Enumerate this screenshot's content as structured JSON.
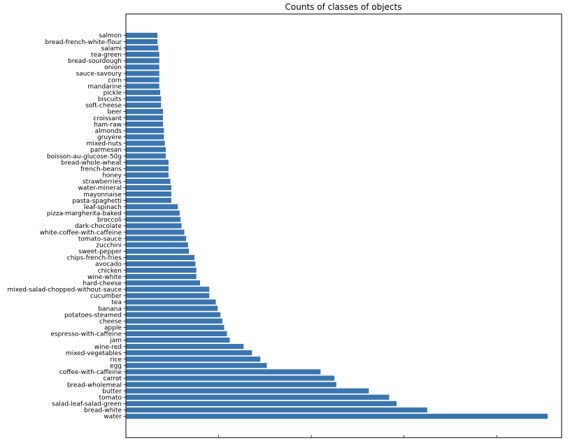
{
  "chart_data": {
    "type": "bar",
    "orientation": "horizontal",
    "title": "Counts of classes of objects",
    "xlabel": "",
    "ylabel": "",
    "xlim": [
      0,
      4700
    ],
    "xticks": [
      0,
      1000,
      2000,
      3000,
      4000
    ],
    "x_tick_labels_visible": false,
    "grid": false,
    "legend": "none",
    "bar_color": "#3a75b0",
    "categories": [
      "water",
      "bread-white",
      "salad-leaf-salad-green",
      "tomato",
      "butter",
      "bread-wholemeal",
      "carrot",
      "coffee-with-caffeine",
      "egg",
      "rice",
      "mixed-vegetables",
      "wine-red",
      "jam",
      "espresso-with-caffeine",
      "apple",
      "cheese",
      "potatoes-steamed",
      "banana",
      "tea",
      "cucumber",
      "mixed-salad-chopped-without-sauce",
      "hard-cheese",
      "wine-white",
      "chicken",
      "avocado",
      "chips-french-fries",
      "sweet-pepper",
      "zucchini",
      "tomato-sauce",
      "white-coffee-with-caffeine",
      "dark-chocolate",
      "broccoli",
      "pizza-margherita-baked",
      "leaf-spinach",
      "pasta-spaghetti",
      "mayonnaise",
      "water-mineral",
      "strawberries",
      "honey",
      "french-beans",
      "bread-whole-wheat",
      "boisson-au-glucose-50g",
      "parmesan",
      "mixed-nuts",
      "gruyere",
      "almonds",
      "ham-raw",
      "croissant",
      "beer",
      "soft-cheese",
      "biscuits",
      "pickle",
      "mandarine",
      "corn",
      "sauce-savoury",
      "onion",
      "bread-sourdough",
      "tea-green",
      "salami",
      "bread-french-white-flour",
      "salmon"
    ],
    "values": [
      4550,
      3250,
      2920,
      2840,
      2620,
      2270,
      2250,
      2100,
      1520,
      1450,
      1360,
      1270,
      1120,
      1090,
      1060,
      1040,
      1020,
      990,
      970,
      900,
      900,
      800,
      760,
      760,
      750,
      740,
      680,
      670,
      650,
      630,
      600,
      590,
      580,
      560,
      490,
      490,
      490,
      480,
      460,
      460,
      460,
      430,
      430,
      420,
      410,
      410,
      400,
      400,
      400,
      380,
      380,
      370,
      360,
      360,
      360,
      360,
      360,
      360,
      350,
      340,
      340
    ]
  }
}
